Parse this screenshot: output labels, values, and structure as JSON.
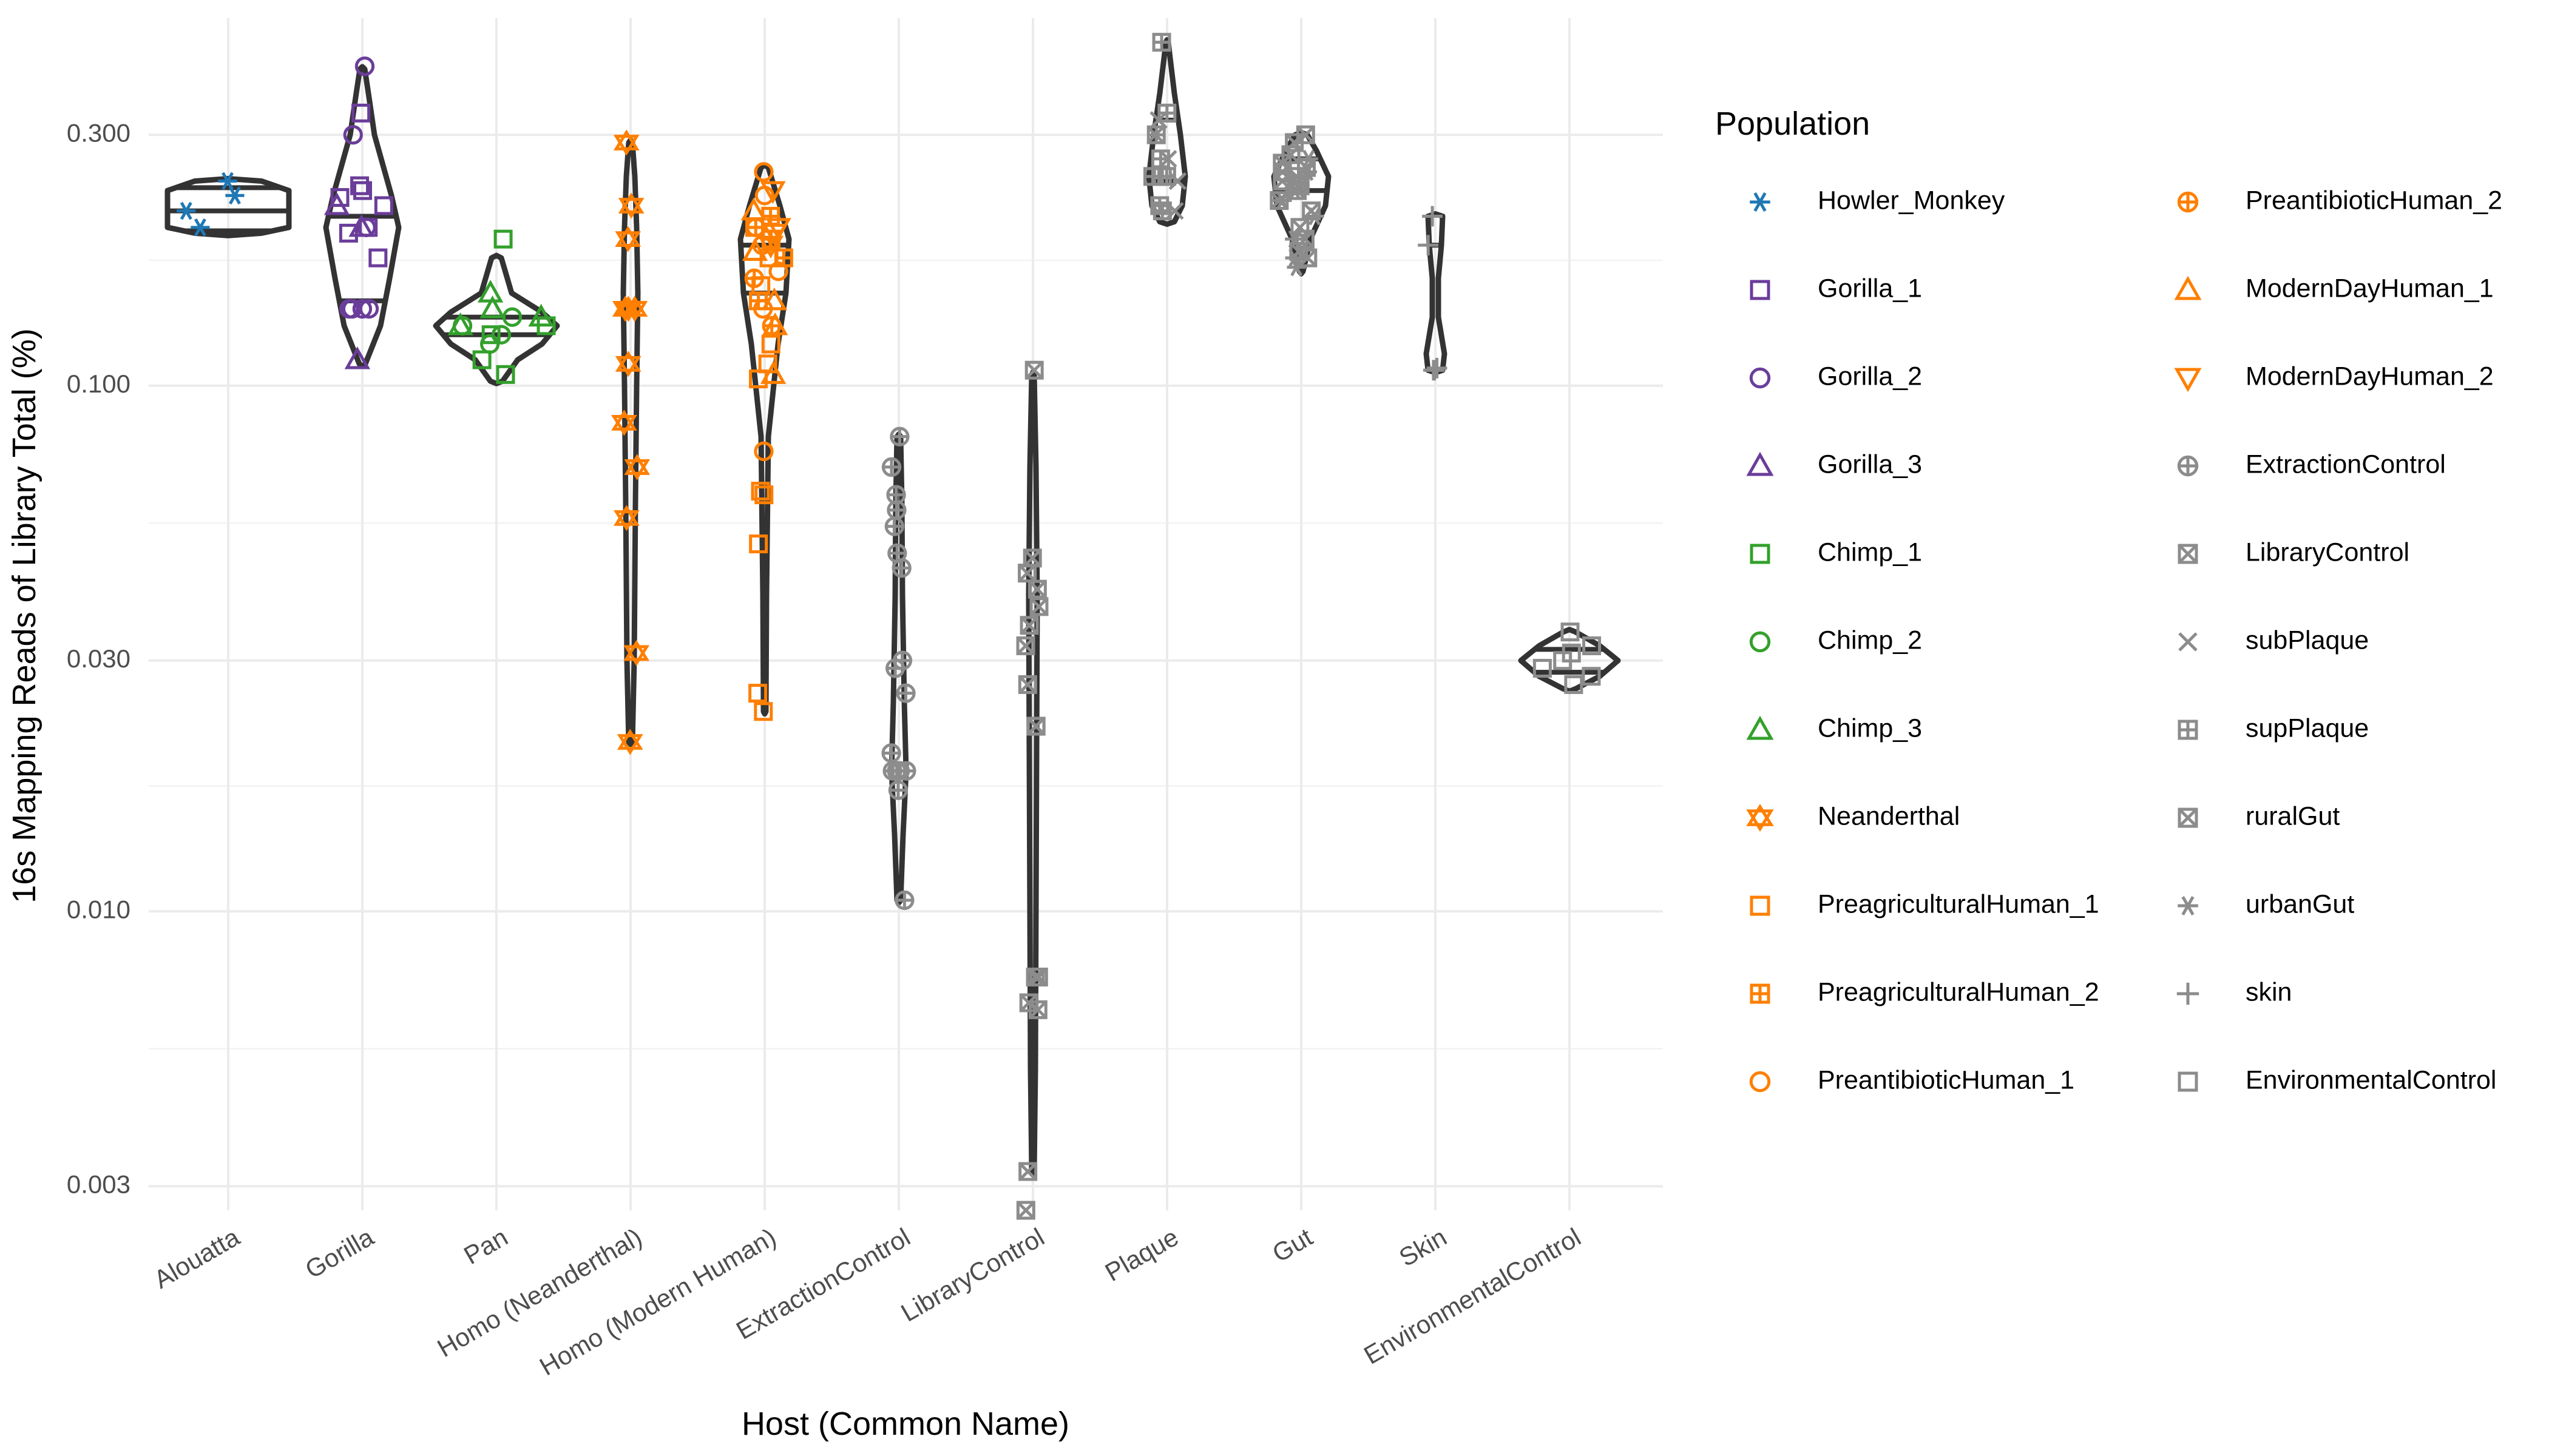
{
  "chart_data": {
    "type": "violin",
    "xlabel": "Host (Common Name)",
    "ylabel": "16s Mapping Reads of Library Total (%)",
    "y_scale": "log10",
    "ylim": [
      0.0027,
      0.5
    ],
    "y_ticks": [
      0.003,
      0.01,
      0.03,
      0.1,
      0.3
    ],
    "y_tick_labels": [
      "0.003",
      "0.010",
      "0.030",
      "0.100",
      "0.300"
    ],
    "grid": true,
    "legend_position": "right",
    "legend_title": "Population",
    "categories": [
      "Alouatta",
      "Gorilla",
      "Pan",
      "Homo (Neanderthal)",
      "Homo (Modern Human)",
      "ExtractionControl",
      "LibraryControl",
      "Plaque",
      "Gut",
      "Skin",
      "EnvironmentalControl"
    ],
    "legend": [
      {
        "name": "Howler_Monkey",
        "color": "#1f78b4",
        "shape": "asterisk"
      },
      {
        "name": "Gorilla_1",
        "color": "#6a3d9a",
        "shape": "square"
      },
      {
        "name": "Gorilla_2",
        "color": "#6a3d9a",
        "shape": "circle"
      },
      {
        "name": "Gorilla_3",
        "color": "#6a3d9a",
        "shape": "triangle"
      },
      {
        "name": "Chimp_1",
        "color": "#33a02c",
        "shape": "square"
      },
      {
        "name": "Chimp_2",
        "color": "#33a02c",
        "shape": "circle"
      },
      {
        "name": "Chimp_3",
        "color": "#33a02c",
        "shape": "triangle"
      },
      {
        "name": "Neanderthal",
        "color": "#ff7f00",
        "shape": "star6"
      },
      {
        "name": "PreagriculturalHuman_1",
        "color": "#ff7f00",
        "shape": "square"
      },
      {
        "name": "PreagriculturalHuman_2",
        "color": "#ff7f00",
        "shape": "square-plus"
      },
      {
        "name": "PreantibioticHuman_1",
        "color": "#ff7f00",
        "shape": "circle"
      },
      {
        "name": "PreantibioticHuman_2",
        "color": "#ff7f00",
        "shape": "circle-plus"
      },
      {
        "name": "ModernDayHuman_1",
        "color": "#ff7f00",
        "shape": "triangle"
      },
      {
        "name": "ModernDayHuman_2",
        "color": "#ff7f00",
        "shape": "triangle-down"
      },
      {
        "name": "ExtractionControl",
        "color": "#8c8c8c",
        "shape": "circle-plus"
      },
      {
        "name": "LibraryControl",
        "color": "#8c8c8c",
        "shape": "square-x"
      },
      {
        "name": "subPlaque",
        "color": "#8c8c8c",
        "shape": "x"
      },
      {
        "name": "supPlaque",
        "color": "#8c8c8c",
        "shape": "square-plus"
      },
      {
        "name": "ruralGut",
        "color": "#8c8c8c",
        "shape": "square-x"
      },
      {
        "name": "urbanGut",
        "color": "#8c8c8c",
        "shape": "asterisk"
      },
      {
        "name": "skin",
        "color": "#8c8c8c",
        "shape": "plus"
      },
      {
        "name": "EnvironmentalControl",
        "color": "#8c8c8c",
        "shape": "square"
      }
    ],
    "violins": [
      {
        "category": "Alouatta",
        "quantiles": [
          0.197,
          0.215,
          0.238
        ],
        "profile": [
          [
            0.195,
            0.55
          ],
          [
            0.2,
            1.0
          ],
          [
            0.215,
            1.0
          ],
          [
            0.235,
            1.0
          ],
          [
            0.245,
            0.55
          ]
        ]
      },
      {
        "category": "Gorilla",
        "quantiles": [
          0.145,
          0.21
        ],
        "profile": [
          [
            0.11,
            0.05
          ],
          [
            0.13,
            0.3
          ],
          [
            0.16,
            0.45
          ],
          [
            0.2,
            0.6
          ],
          [
            0.23,
            0.48
          ],
          [
            0.3,
            0.2
          ],
          [
            0.36,
            0.1
          ],
          [
            0.4,
            0.04
          ]
        ]
      },
      {
        "category": "Pan",
        "quantiles": [
          0.125,
          0.135
        ],
        "profile": [
          [
            0.102,
            0.1
          ],
          [
            0.112,
            0.35
          ],
          [
            0.12,
            0.75
          ],
          [
            0.13,
            1.0
          ],
          [
            0.138,
            0.75
          ],
          [
            0.15,
            0.25
          ],
          [
            0.175,
            0.08
          ]
        ]
      },
      {
        "category": "Homo (Neanderthal)",
        "quantiles": [],
        "profile": [
          [
            0.021,
            0.03
          ],
          [
            0.03,
            0.06
          ],
          [
            0.06,
            0.08
          ],
          [
            0.1,
            0.1
          ],
          [
            0.15,
            0.12
          ],
          [
            0.2,
            0.1
          ],
          [
            0.25,
            0.07
          ],
          [
            0.29,
            0.03
          ]
        ]
      },
      {
        "category": "Homo (Modern Human)",
        "quantiles": [
          0.15,
          0.185
        ],
        "profile": [
          [
            0.024,
            0.02
          ],
          [
            0.04,
            0.03
          ],
          [
            0.08,
            0.06
          ],
          [
            0.12,
            0.22
          ],
          [
            0.15,
            0.35
          ],
          [
            0.19,
            0.4
          ],
          [
            0.22,
            0.25
          ],
          [
            0.26,
            0.06
          ]
        ]
      },
      {
        "category": "ExtractionControl",
        "quantiles": [],
        "profile": [
          [
            0.0105,
            0.03
          ],
          [
            0.014,
            0.07
          ],
          [
            0.0185,
            0.12
          ],
          [
            0.025,
            0.09
          ],
          [
            0.04,
            0.06
          ],
          [
            0.06,
            0.05
          ],
          [
            0.08,
            0.03
          ]
        ]
      },
      {
        "category": "LibraryControl",
        "quantiles": [],
        "profile": [
          [
            0.0032,
            0.02
          ],
          [
            0.005,
            0.04
          ],
          [
            0.01,
            0.05
          ],
          [
            0.02,
            0.06
          ],
          [
            0.04,
            0.07
          ],
          [
            0.07,
            0.05
          ],
          [
            0.105,
            0.02
          ]
        ]
      },
      {
        "category": "Plaque",
        "quantiles": [
          0.245,
          0.32
        ],
        "profile": [
          [
            0.205,
            0.12
          ],
          [
            0.22,
            0.25
          ],
          [
            0.25,
            0.3
          ],
          [
            0.3,
            0.22
          ],
          [
            0.36,
            0.12
          ],
          [
            0.42,
            0.05
          ],
          [
            0.45,
            0.02
          ]
        ]
      },
      {
        "category": "Gut",
        "quantiles": [
          0.235,
          0.27
        ],
        "profile": [
          [
            0.165,
            0.03
          ],
          [
            0.19,
            0.15
          ],
          [
            0.22,
            0.4
          ],
          [
            0.25,
            0.45
          ],
          [
            0.28,
            0.25
          ],
          [
            0.3,
            0.1
          ]
        ]
      },
      {
        "category": "Skin",
        "quantiles": [
          0.185
        ],
        "profile": [
          [
            0.107,
            0.12
          ],
          [
            0.115,
            0.15
          ],
          [
            0.135,
            0.05
          ],
          [
            0.16,
            0.05
          ],
          [
            0.185,
            0.1
          ],
          [
            0.21,
            0.12
          ]
        ]
      },
      {
        "category": "EnvironmentalControl",
        "quantiles": [
          0.0285,
          0.0315
        ],
        "profile": [
          [
            0.0265,
            0.1
          ],
          [
            0.028,
            0.5
          ],
          [
            0.03,
            0.8
          ],
          [
            0.032,
            0.5
          ],
          [
            0.034,
            0.1
          ]
        ]
      }
    ],
    "points": [
      {
        "category": "Alouatta",
        "population": "Howler_Monkey",
        "values": [
          0.245,
          0.23,
          0.215,
          0.2
        ]
      },
      {
        "category": "Gorilla",
        "population": "Gorilla_1",
        "values": [
          0.24,
          0.235,
          0.228,
          0.22,
          0.2,
          0.33,
          0.195,
          0.175
        ]
      },
      {
        "category": "Gorilla",
        "population": "Gorilla_2",
        "values": [
          0.405,
          0.3,
          0.14,
          0.14,
          0.14,
          0.14,
          0.2
        ]
      },
      {
        "category": "Gorilla",
        "population": "Gorilla_3",
        "values": [
          0.2,
          0.112,
          0.22
        ]
      },
      {
        "category": "Pan",
        "population": "Chimp_1",
        "values": [
          0.19,
          0.105,
          0.112,
          0.125,
          0.13
        ]
      },
      {
        "category": "Pan",
        "population": "Chimp_2",
        "values": [
          0.13,
          0.12,
          0.125,
          0.135
        ]
      },
      {
        "category": "Pan",
        "population": "Chimp_3",
        "values": [
          0.15,
          0.13,
          0.135,
          0.14
        ]
      },
      {
        "category": "Homo (Neanderthal)",
        "population": "Neanderthal",
        "values": [
          0.29,
          0.22,
          0.19,
          0.14,
          0.14,
          0.14,
          0.11,
          0.085,
          0.07,
          0.056,
          0.031,
          0.021
        ]
      },
      {
        "category": "Homo (Modern Human)",
        "population": "PreagriculturalHuman_1",
        "values": [
          0.2,
          0.175,
          0.155,
          0.12,
          0.11,
          0.103,
          0.063,
          0.062,
          0.05,
          0.026,
          0.024
        ]
      },
      {
        "category": "Homo (Modern Human)",
        "population": "PreagriculturalHuman_2",
        "values": [
          0.21,
          0.19,
          0.175,
          0.145
        ]
      },
      {
        "category": "Homo (Modern Human)",
        "population": "PreantibioticHuman_1",
        "values": [
          0.255,
          0.23,
          0.185,
          0.165,
          0.14,
          0.075
        ]
      },
      {
        "category": "Homo (Modern Human)",
        "population": "PreantibioticHuman_2",
        "values": [
          0.2,
          0.16,
          0.13
        ]
      },
      {
        "category": "Homo (Modern Human)",
        "population": "ModernDayHuman_1",
        "values": [
          0.215,
          0.18,
          0.145,
          0.13,
          0.105
        ]
      },
      {
        "category": "Homo (Modern Human)",
        "population": "ModernDayHuman_2",
        "values": [
          0.235,
          0.2,
          0.195,
          0.185
        ]
      },
      {
        "category": "ExtractionControl",
        "population": "ExtractionControl",
        "values": [
          0.08,
          0.07,
          0.062,
          0.058,
          0.054,
          0.048,
          0.045,
          0.03,
          0.029,
          0.026,
          0.02,
          0.0185,
          0.0185,
          0.0185,
          0.0185,
          0.0185,
          0.017,
          0.0105
        ]
      },
      {
        "category": "LibraryControl",
        "population": "LibraryControl",
        "values": [
          0.107,
          0.047,
          0.044,
          0.041,
          0.038,
          0.035,
          0.032,
          0.027,
          0.0225,
          0.0225,
          0.0075,
          0.0075,
          0.0067,
          0.0065,
          0.0032,
          0.0027
        ]
      },
      {
        "category": "Plaque",
        "population": "subPlaque",
        "values": [
          0.32,
          0.3,
          0.27,
          0.245,
          0.215
        ]
      },
      {
        "category": "Plaque",
        "population": "supPlaque",
        "values": [
          0.45,
          0.33,
          0.3,
          0.27,
          0.25,
          0.25,
          0.25,
          0.22,
          0.215
        ]
      },
      {
        "category": "Gut",
        "population": "ruralGut",
        "values": [
          0.3,
          0.29,
          0.275,
          0.265,
          0.26,
          0.255,
          0.25,
          0.245,
          0.24,
          0.235,
          0.225,
          0.215,
          0.2,
          0.19,
          0.18,
          0.175
        ]
      },
      {
        "category": "Gut",
        "population": "urbanGut",
        "values": [
          0.27,
          0.255,
          0.245,
          0.235,
          0.225,
          0.21,
          0.19,
          0.175,
          0.168
        ]
      },
      {
        "category": "Skin",
        "population": "skin",
        "values": [
          0.21,
          0.185,
          0.108,
          0.107,
          0.107
        ]
      },
      {
        "category": "EnvironmentalControl",
        "population": "EnvironmentalControl",
        "values": [
          0.034,
          0.032,
          0.031,
          0.03,
          0.029,
          0.028,
          0.027
        ]
      }
    ]
  }
}
